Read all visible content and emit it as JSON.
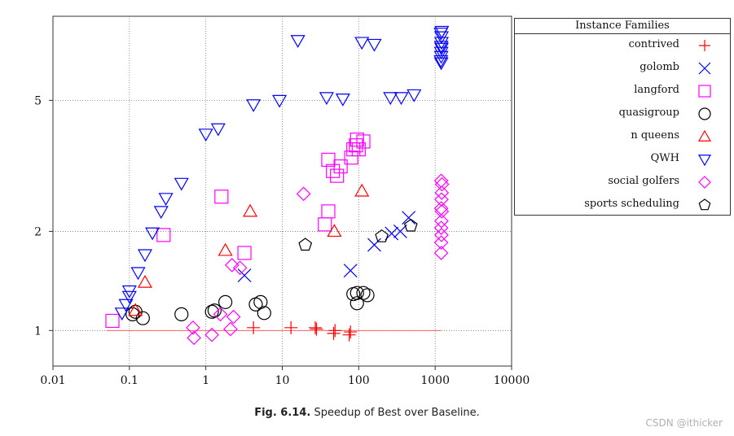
{
  "chart_data": {
    "type": "scatter",
    "title": "",
    "xlabel": "",
    "ylabel": "",
    "xscale": "log",
    "yscale": "log",
    "xlim": [
      0.01,
      10000
    ],
    "ylim": [
      0.78,
      9.0
    ],
    "x_ticks": [
      0.01,
      0.1,
      1,
      10,
      100,
      1000,
      10000
    ],
    "x_tick_labels": [
      "0.01",
      "0.1",
      "1",
      "10",
      "100",
      "1000",
      "10000"
    ],
    "y_ticks": [
      1,
      2,
      5
    ],
    "y_tick_labels": [
      "1",
      "2",
      "5"
    ],
    "grid": true,
    "reference_line": {
      "y": 1,
      "x_range": [
        0.05,
        1200
      ],
      "color": "#ff6666"
    },
    "legend_position": "right",
    "legend_title": "Instance Families",
    "series": [
      {
        "name": "contrived",
        "marker": "plus",
        "color": "#ff0000",
        "points": [
          [
            4.2,
            1.02
          ],
          [
            13,
            1.02
          ],
          [
            27,
            1.02
          ],
          [
            28,
            1.01
          ],
          [
            47,
            0.98
          ],
          [
            49,
            1.0
          ],
          [
            75,
            0.97
          ],
          [
            78,
            0.99
          ]
        ]
      },
      {
        "name": "golomb",
        "marker": "x",
        "color": "#0000ff",
        "points": [
          [
            3.2,
            1.47
          ],
          [
            78,
            1.52
          ],
          [
            160,
            1.82
          ],
          [
            270,
            1.97
          ],
          [
            350,
            2.0
          ],
          [
            450,
            2.2
          ]
        ]
      },
      {
        "name": "langford",
        "marker": "square",
        "color": "#ff00ff",
        "points": [
          [
            0.06,
            1.07
          ],
          [
            0.28,
            1.95
          ],
          [
            1.6,
            2.55
          ],
          [
            3.2,
            1.72
          ],
          [
            36,
            2.1
          ],
          [
            40,
            2.3
          ],
          [
            40,
            3.3
          ],
          [
            46,
            3.05
          ],
          [
            52,
            2.95
          ],
          [
            58,
            3.15
          ],
          [
            80,
            3.35
          ],
          [
            85,
            3.55
          ],
          [
            92,
            3.65
          ],
          [
            95,
            3.8
          ],
          [
            100,
            3.55
          ],
          [
            115,
            3.75
          ]
        ]
      },
      {
        "name": "quasigroup",
        "marker": "circle",
        "color": "#000000",
        "points": [
          [
            0.11,
            1.12
          ],
          [
            0.12,
            1.14
          ],
          [
            0.15,
            1.09
          ],
          [
            0.48,
            1.12
          ],
          [
            1.2,
            1.14
          ],
          [
            1.3,
            1.15
          ],
          [
            1.8,
            1.22
          ],
          [
            4.5,
            1.2
          ],
          [
            5.2,
            1.22
          ],
          [
            5.8,
            1.13
          ],
          [
            85,
            1.29
          ],
          [
            95,
            1.3
          ],
          [
            95,
            1.21
          ],
          [
            115,
            1.3
          ],
          [
            130,
            1.28
          ]
        ]
      },
      {
        "name": "n queens",
        "marker": "triangle-up",
        "color": "#ff0000",
        "points": [
          [
            0.12,
            1.15
          ],
          [
            0.16,
            1.4
          ],
          [
            1.8,
            1.75
          ],
          [
            3.8,
            2.3
          ],
          [
            48,
            2.0
          ],
          [
            110,
            2.65
          ]
        ]
      },
      {
        "name": "QWH",
        "marker": "triangle-down",
        "color": "#0000ff",
        "points": [
          [
            0.08,
            1.13
          ],
          [
            0.09,
            1.2
          ],
          [
            0.1,
            1.27
          ],
          [
            0.1,
            1.32
          ],
          [
            0.13,
            1.5
          ],
          [
            0.16,
            1.7
          ],
          [
            0.2,
            1.98
          ],
          [
            0.26,
            2.3
          ],
          [
            0.3,
            2.52
          ],
          [
            0.48,
            2.8
          ],
          [
            1.0,
            3.95
          ],
          [
            1.45,
            4.1
          ],
          [
            4.2,
            4.85
          ],
          [
            9.2,
            5.0
          ],
          [
            16,
            7.6
          ],
          [
            38,
            5.1
          ],
          [
            62,
            5.05
          ],
          [
            110,
            7.5
          ],
          [
            160,
            7.4
          ],
          [
            260,
            5.1
          ],
          [
            360,
            5.1
          ],
          [
            530,
            5.2
          ],
          [
            1190,
            6.6
          ],
          [
            1200,
            7.0
          ],
          [
            1200,
            7.3
          ],
          [
            1210,
            7.5
          ],
          [
            1210,
            7.8
          ],
          [
            1190,
            8.0
          ],
          [
            1220,
            8.1
          ],
          [
            1200,
            6.8
          ],
          [
            1210,
            7.2
          ],
          [
            1200,
            6.5
          ]
        ]
      },
      {
        "name": "social golfers",
        "marker": "diamond",
        "color": "#ff00ff",
        "points": [
          [
            0.68,
            1.02
          ],
          [
            0.7,
            0.95
          ],
          [
            1.2,
            0.97
          ],
          [
            1.55,
            1.12
          ],
          [
            2.1,
            1.01
          ],
          [
            2.3,
            1.1
          ],
          [
            2.2,
            1.58
          ],
          [
            2.8,
            1.55
          ],
          [
            19,
            2.6
          ],
          [
            1200,
            1.72
          ],
          [
            1200,
            1.85
          ],
          [
            1210,
            1.95
          ],
          [
            1200,
            2.05
          ],
          [
            1210,
            2.15
          ],
          [
            1220,
            2.3
          ],
          [
            1200,
            2.35
          ],
          [
            1210,
            2.5
          ],
          [
            1220,
            2.62
          ],
          [
            1230,
            2.78
          ],
          [
            1200,
            2.85
          ]
        ]
      },
      {
        "name": "sports scheduling",
        "marker": "pentagon",
        "color": "#000000",
        "points": [
          [
            20,
            1.82
          ],
          [
            200,
            1.93
          ],
          [
            480,
            2.08
          ]
        ]
      }
    ]
  },
  "caption": {
    "label": "Fig. 6.14.",
    "text": "Speedup of Best over Baseline."
  },
  "watermark": "CSDN @ithicker"
}
